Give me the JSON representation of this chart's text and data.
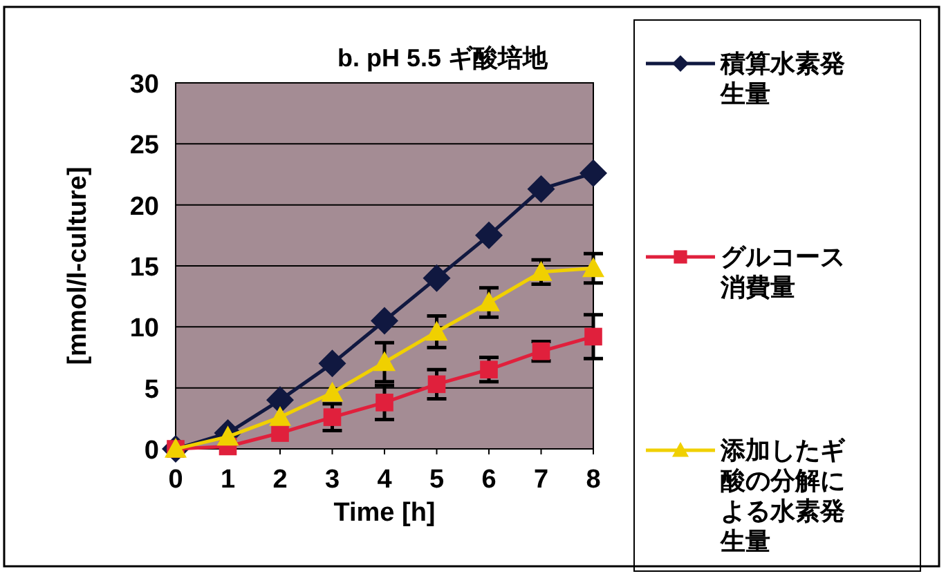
{
  "chart_data": {
    "type": "line",
    "title": "b. pH 5.5 ギ酸培地",
    "xlabel": "Time [h]",
    "ylabel": "[mmol/l-culture]",
    "x": [
      0,
      1,
      2,
      3,
      4,
      5,
      6,
      7,
      8
    ],
    "xlim": [
      0,
      8
    ],
    "xticks": [
      0,
      1,
      2,
      3,
      4,
      5,
      6,
      7,
      8
    ],
    "ylim": [
      0,
      30
    ],
    "yticks": [
      0,
      5,
      10,
      15,
      20,
      25,
      30
    ],
    "grid": "y",
    "legend": "right",
    "line_style": "solid",
    "series": [
      {
        "name": "積算水素発生量",
        "color": "#101840",
        "marker": "diamond",
        "values": [
          0,
          1.3,
          4,
          7,
          10.5,
          14,
          17.5,
          21.3,
          22.6
        ]
      },
      {
        "name": "グルコース消費量",
        "color": "#e0203c",
        "marker": "square",
        "values": [
          0,
          0.2,
          1.3,
          2.6,
          3.8,
          5.3,
          6.5,
          8,
          9.2
        ],
        "errors": [
          null,
          null,
          null,
          1.1,
          1.4,
          1.2,
          1,
          0.8,
          1.8
        ]
      },
      {
        "name": "添加したギ酸の分解による水素発生量",
        "color": "#f0d000",
        "marker": "triangle",
        "values": [
          0,
          1,
          2.6,
          4.6,
          7.1,
          9.6,
          12,
          14.5,
          14.8
        ],
        "errors": [
          null,
          null,
          null,
          null,
          1.6,
          1.3,
          1.2,
          1,
          1.2
        ]
      }
    ]
  }
}
